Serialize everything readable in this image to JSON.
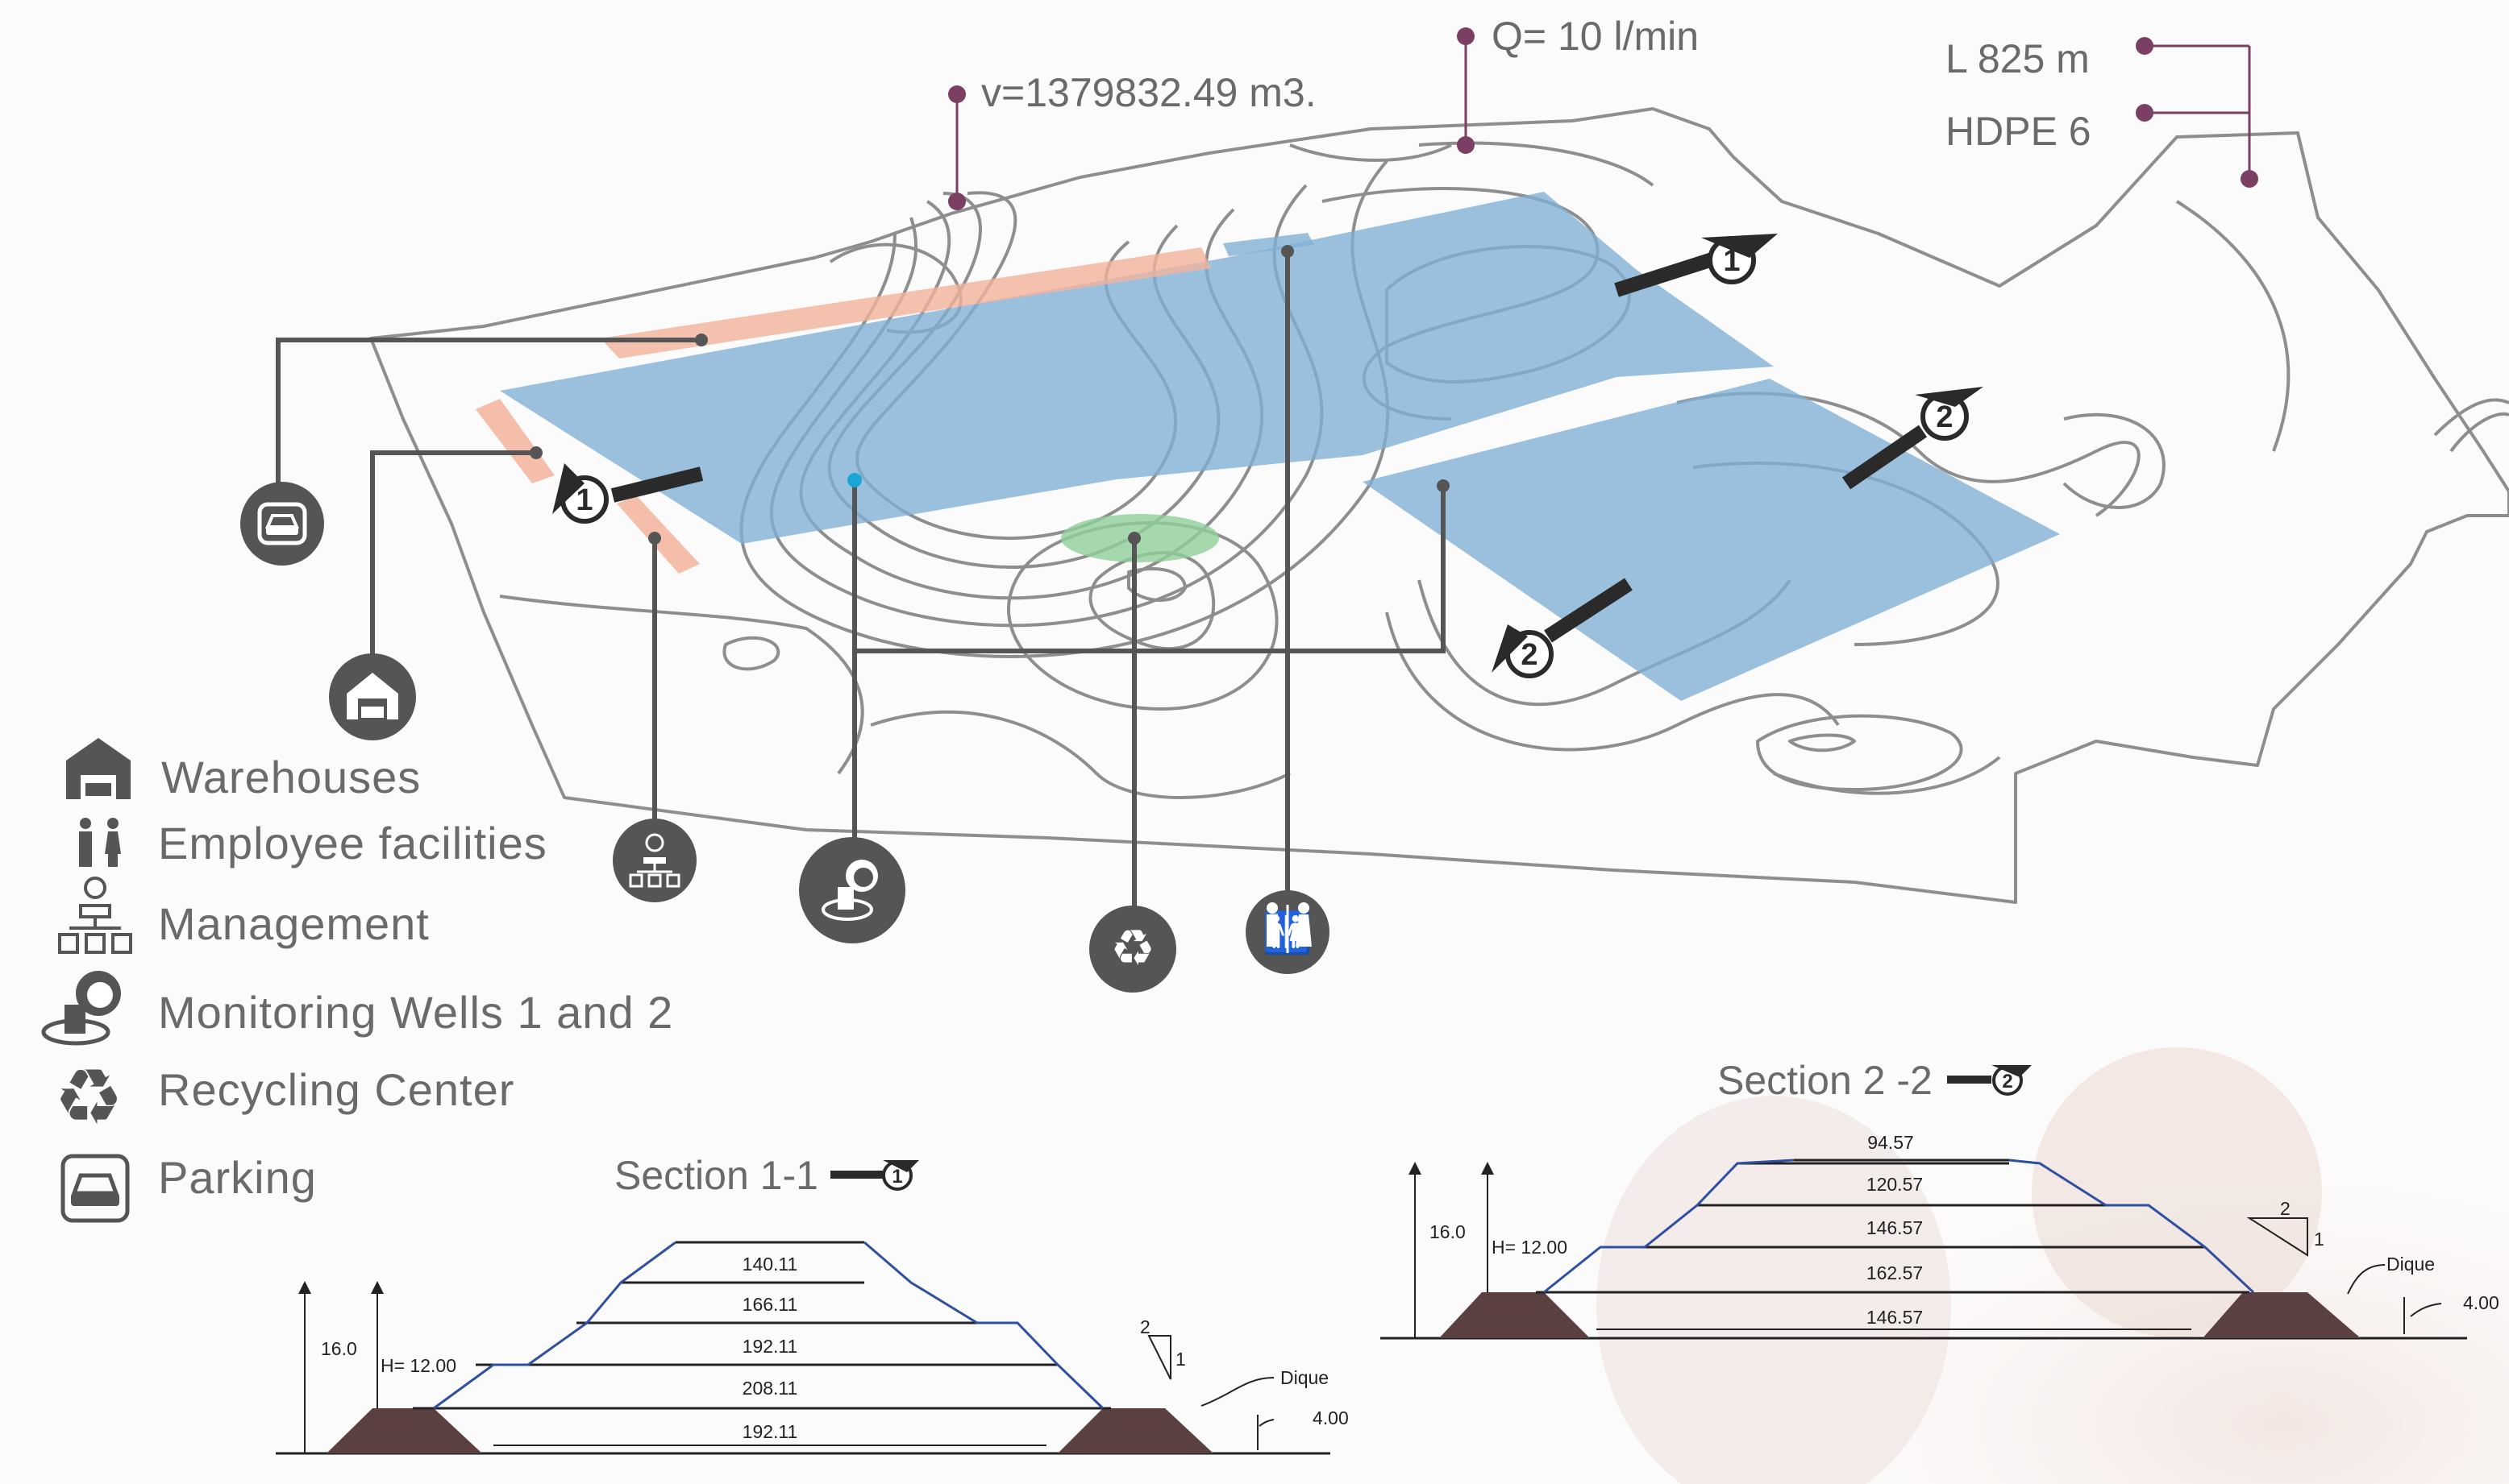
{
  "annotations": {
    "volume": "v=1379832.49 m3.",
    "flow": "Q= 10 l/min",
    "length": "L 825 m",
    "liner": "HDPE 6"
  },
  "section_markers": {
    "one": "1",
    "two": "2"
  },
  "legend": [
    {
      "icon": "warehouse-icon",
      "label": "Warehouses"
    },
    {
      "icon": "employee-facilities-icon",
      "label": "Employee facilities"
    },
    {
      "icon": "management-icon",
      "label": "Management"
    },
    {
      "icon": "monitoring-well-icon",
      "label": "Monitoring Wells 1 and 2"
    },
    {
      "icon": "recycling-icon",
      "label": "Recycling Center"
    },
    {
      "icon": "parking-icon",
      "label": "Parking"
    }
  ],
  "section_1": {
    "title": "Section 1-1",
    "marker": "1",
    "levels": [
      "140.11",
      "166.11",
      "192.11",
      "208.11",
      "192.11"
    ],
    "total_height": "16.0",
    "height_label": "H= 12.00",
    "slope_run": "2",
    "slope_rise": "1",
    "dike_label": "Dique",
    "dike_height": "4.00"
  },
  "section_2": {
    "title": "Section 2 -2",
    "marker": "2",
    "levels": [
      "94.57",
      "120.57",
      "146.57",
      "162.57",
      "146.57"
    ],
    "total_height": "16.0",
    "height_label": "H= 12.00",
    "slope_run": "2",
    "slope_rise": "1",
    "dike_label": "Dique",
    "dike_height": "4.00"
  },
  "colors": {
    "cell_blue": "#7fb0d6",
    "facility_salmon": "#f3b39c",
    "recycling_green": "#8fd19a",
    "pin_gray": "#555555",
    "annotation_magenta": "#7a3f63",
    "dike_brown": "#5a4040",
    "section_blue": "#2f4fa0"
  }
}
